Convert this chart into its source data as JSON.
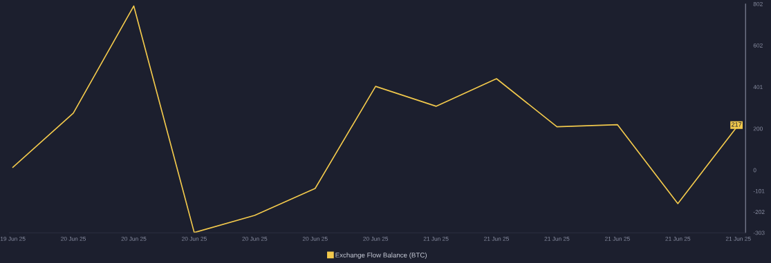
{
  "chart_data": {
    "type": "line",
    "categories": [
      "19 Jun 25",
      "20 Jun 25",
      "20 Jun 25",
      "20 Jun 25",
      "20 Jun 25",
      "20 Jun 25",
      "20 Jun 25",
      "21 Jun 25",
      "21 Jun 25",
      "21 Jun 25",
      "21 Jun 25",
      "21 Jun 25",
      "21 Jun 25"
    ],
    "series": [
      {
        "name": "Exchange Flow Balance (BTC)",
        "color": "#f2c94c",
        "values": [
          13,
          275,
          792,
          -302,
          -219,
          -89,
          404,
          308,
          441,
          209,
          219,
          -162,
          217
        ],
        "value_labels": [
          null,
          null,
          null,
          null,
          null,
          null,
          null,
          null,
          null,
          null,
          null,
          null,
          "217"
        ]
      }
    ],
    "ylim": [
      -303,
      802
    ],
    "yticks": [
      -303,
      -202,
      -101,
      0,
      200,
      401,
      602,
      802
    ],
    "grid": false,
    "legend": "bottom",
    "marker": "none",
    "line_style": "solid"
  }
}
